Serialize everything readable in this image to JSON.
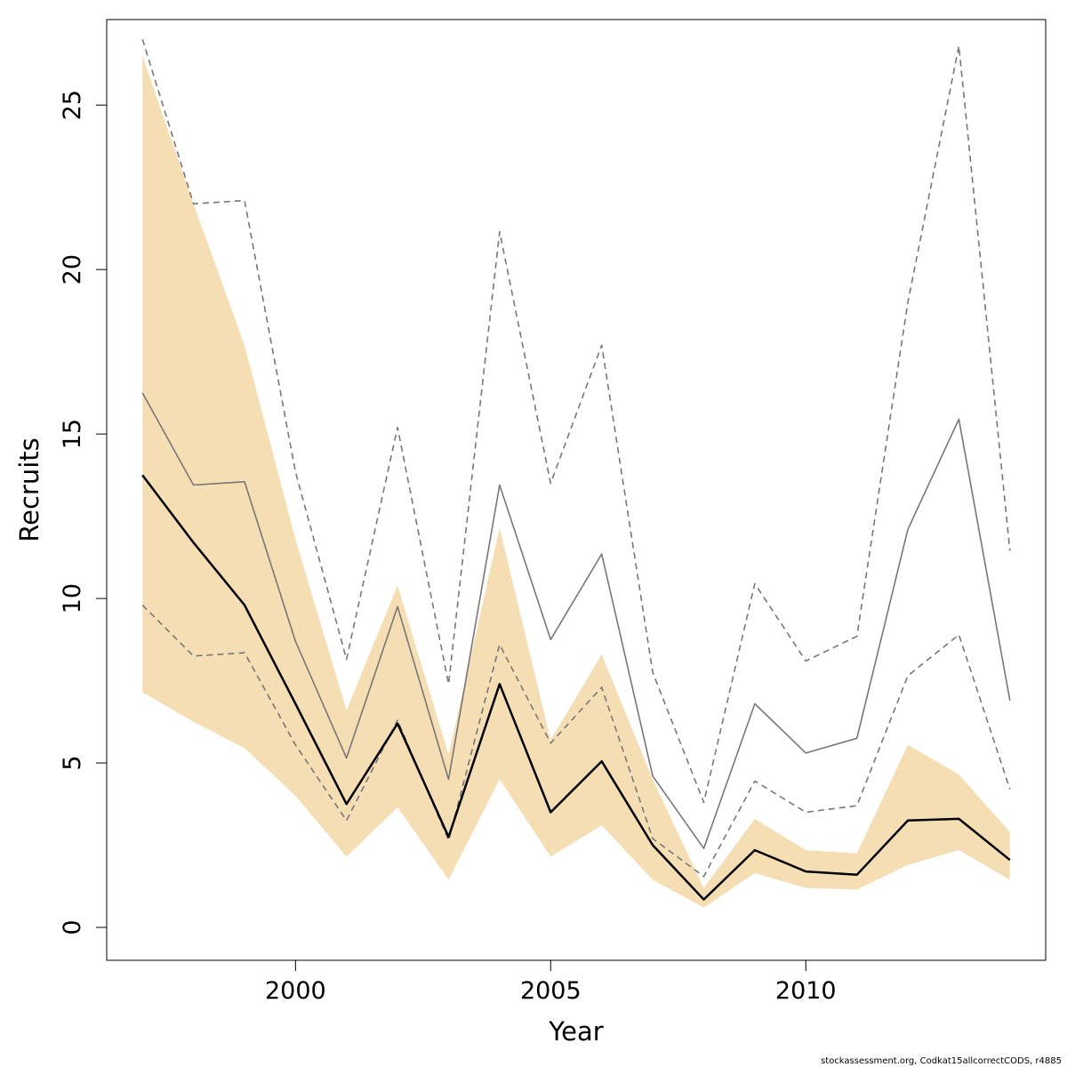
{
  "chart_data": {
    "type": "line",
    "xlabel": "Year",
    "ylabel": "Recruits",
    "xlim": [
      1996.3,
      2014.7
    ],
    "ylim": [
      -1,
      27.6
    ],
    "x_ticks": [
      2000,
      2005,
      2010
    ],
    "y_ticks": [
      0,
      5,
      10,
      15,
      20,
      25
    ],
    "grid": false,
    "legend": "none",
    "x": [
      1997,
      1998,
      1999,
      2000,
      2001,
      2002,
      2003,
      2004,
      2005,
      2006,
      2007,
      2008,
      2009,
      2010,
      2011,
      2012,
      2013,
      2014
    ],
    "band": {
      "color": "#f5deb3",
      "lower": [
        7.15,
        6.25,
        5.45,
        4.0,
        2.15,
        3.65,
        1.45,
        4.5,
        2.15,
        3.1,
        1.45,
        0.6,
        1.65,
        1.2,
        1.15,
        1.9,
        2.35,
        1.45
      ],
      "upper": [
        26.5,
        22.0,
        17.7,
        11.8,
        6.6,
        10.4,
        5.25,
        12.15,
        5.7,
        8.3,
        4.5,
        1.2,
        3.3,
        2.35,
        2.25,
        5.55,
        4.65,
        2.9
      ]
    },
    "series": [
      {
        "role": "estimate",
        "color": "#000000",
        "width": 2.5,
        "dash": "",
        "values": [
          13.75,
          11.7,
          9.8,
          6.8,
          3.75,
          6.2,
          2.75,
          7.4,
          3.5,
          5.05,
          2.5,
          0.85,
          2.35,
          1.7,
          1.6,
          3.25,
          3.3,
          2.05
        ]
      },
      {
        "role": "alternative",
        "color": "#777777",
        "width": 1.6,
        "dash": "",
        "values": [
          16.25,
          13.45,
          13.55,
          8.7,
          5.15,
          9.75,
          4.5,
          13.45,
          8.75,
          11.35,
          4.6,
          2.4,
          6.8,
          5.3,
          5.75,
          12.1,
          15.45,
          6.9
        ]
      },
      {
        "role": "alternative-upper",
        "color": "#777777",
        "width": 1.6,
        "dash": "7,5",
        "values": [
          27.0,
          22.0,
          22.1,
          13.85,
          8.15,
          15.2,
          7.4,
          21.15,
          13.5,
          17.7,
          7.75,
          3.8,
          10.45,
          8.1,
          8.85,
          19.0,
          26.8,
          11.45
        ]
      },
      {
        "role": "alternative-lower",
        "color": "#777777",
        "width": 1.6,
        "dash": "7,5",
        "values": [
          9.8,
          8.25,
          8.35,
          5.55,
          3.25,
          6.3,
          2.65,
          8.6,
          5.6,
          7.3,
          2.7,
          1.55,
          4.45,
          3.5,
          3.7,
          7.65,
          8.9,
          4.2
        ]
      }
    ]
  },
  "footer": {
    "credit": "stockassessment.org, Codkat15allcorrectCODS, r4885"
  }
}
